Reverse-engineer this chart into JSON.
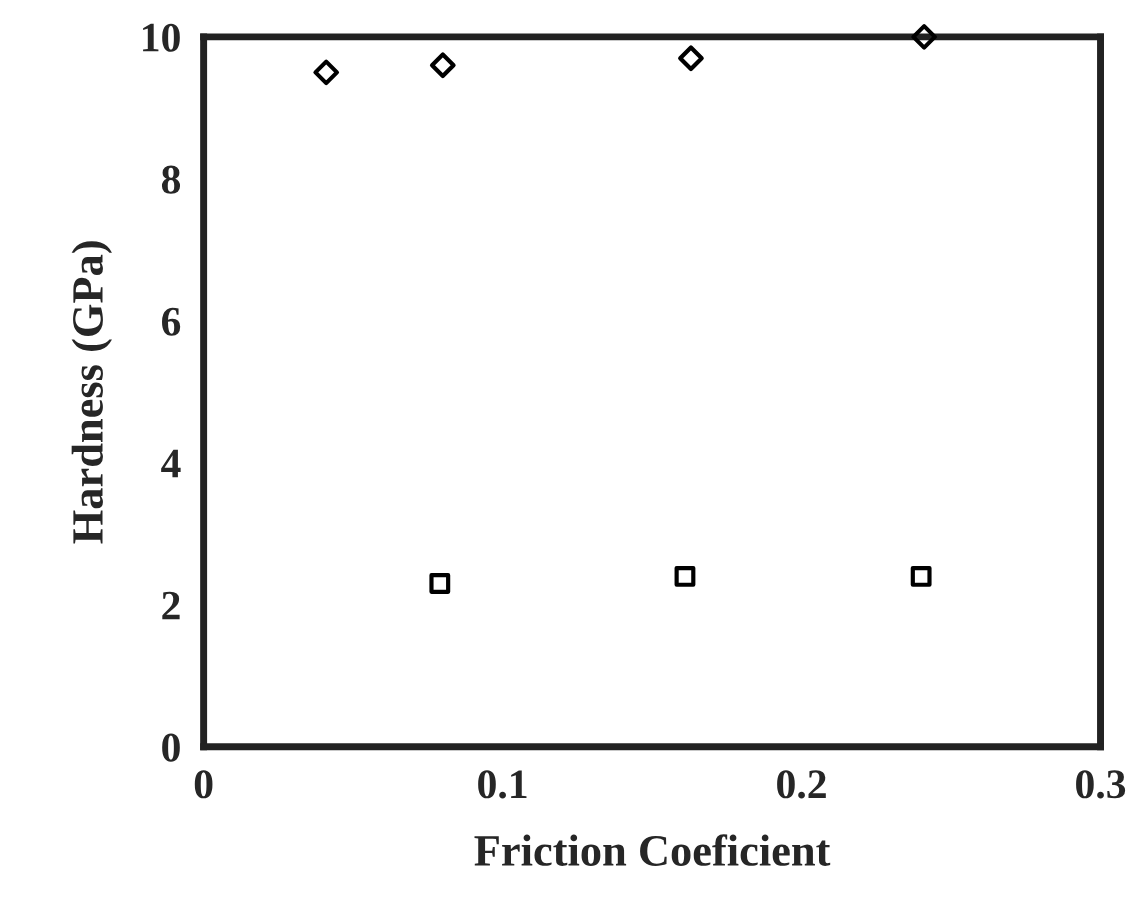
{
  "chart_data": {
    "type": "scatter",
    "xlabel": "Friction Coeficient",
    "ylabel": "Hardness (GPa)",
    "xlim": [
      0,
      0.3
    ],
    "ylim": [
      0,
      10
    ],
    "xticks": [
      0,
      0.1,
      0.2,
      0.3
    ],
    "yticks": [
      0,
      2,
      4,
      6,
      8,
      10
    ],
    "grid": false,
    "legend": false,
    "series": [
      {
        "marker": "diamond",
        "color": "#000000",
        "x": [
          0.041,
          0.08,
          0.163,
          0.241
        ],
        "values": [
          9.5,
          9.6,
          9.7,
          10
        ]
      },
      {
        "marker": "square",
        "color": "#000000",
        "x": [
          0.079,
          0.161,
          0.24
        ],
        "values": [
          2.3,
          2.4,
          2.4
        ]
      }
    ]
  }
}
